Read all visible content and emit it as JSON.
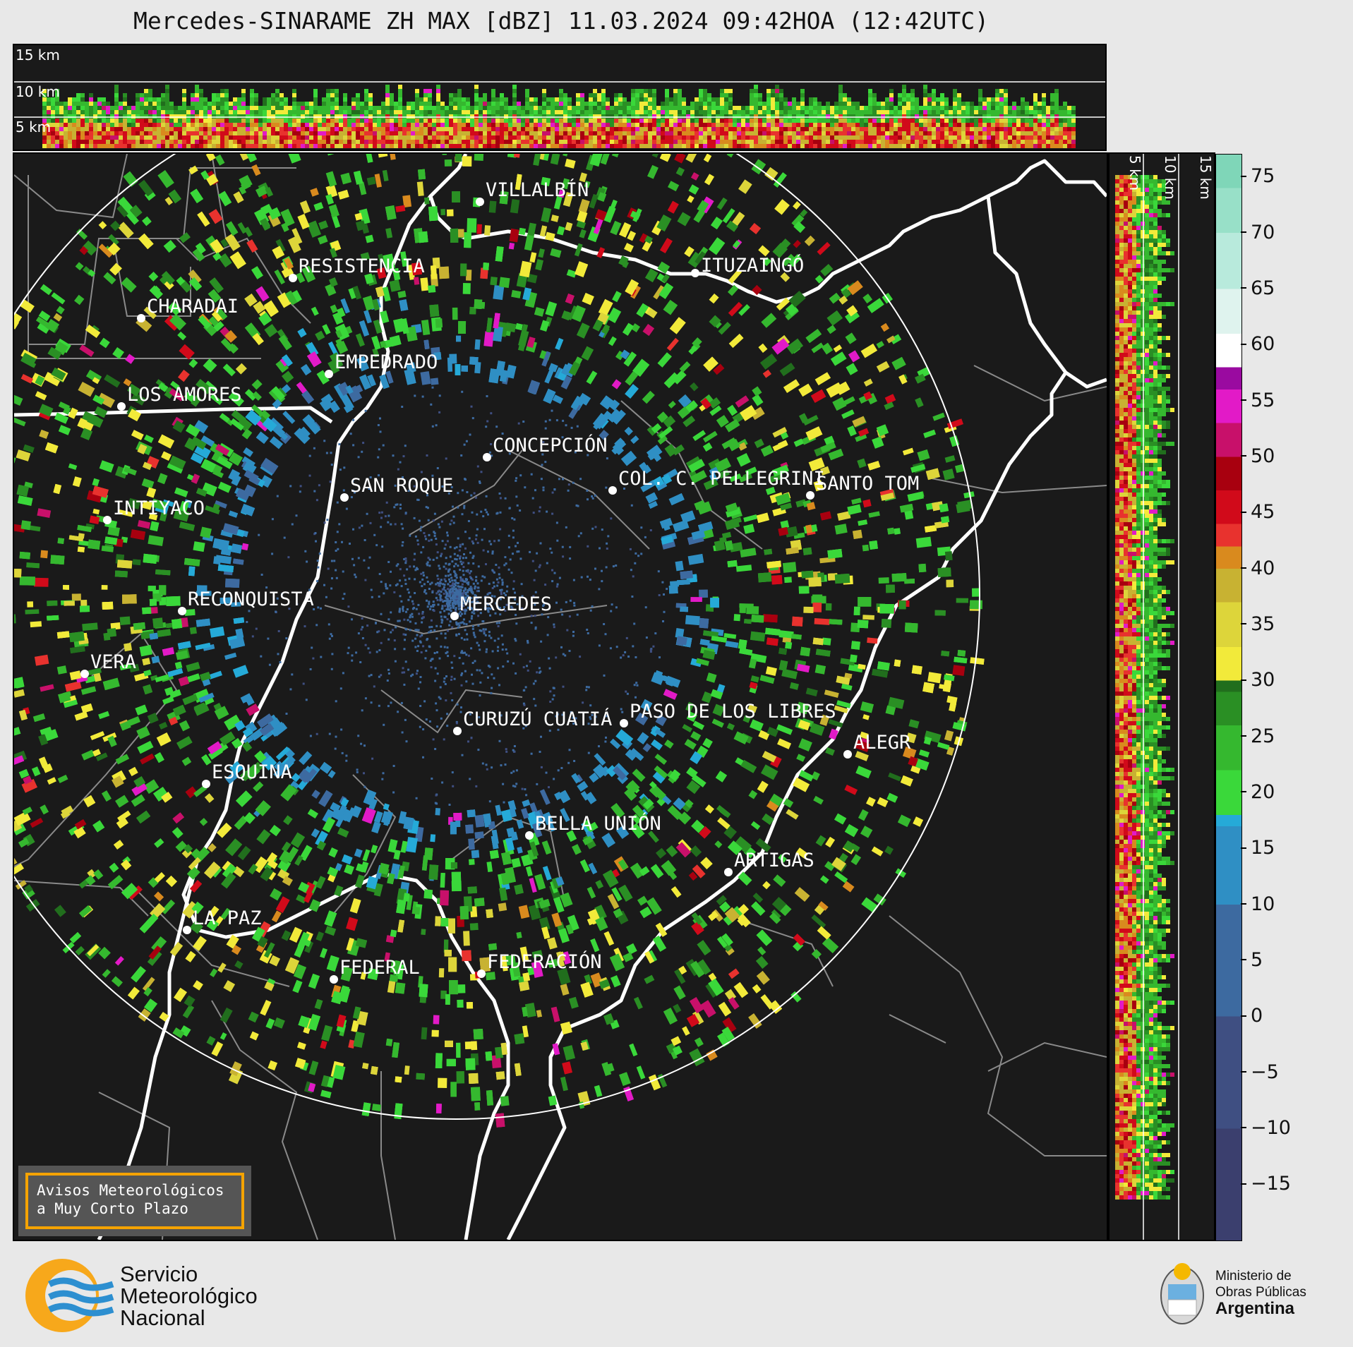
{
  "title": "Mercedes-SINARAME ZH MAX [dBZ] 11.03.2024 09:42HOA (12:42UTC)",
  "radar_site": "MERCEDES",
  "height_labels": [
    "15 km",
    "10 km",
    "5 km"
  ],
  "colorbar": {
    "ticks": [
      "75",
      "70",
      "65",
      "60",
      "55",
      "50",
      "45",
      "40",
      "35",
      "30",
      "25",
      "20",
      "15",
      "10",
      "5",
      "0",
      "−5",
      "−10",
      "−15"
    ],
    "range": [
      -20,
      77
    ],
    "palette": [
      {
        "from": -20,
        "color": "#3b3f6e"
      },
      {
        "from": -10,
        "color": "#3f4f82"
      },
      {
        "from": 0,
        "color": "#3d6aa0"
      },
      {
        "from": 10,
        "color": "#2f8fc4"
      },
      {
        "from": 17,
        "color": "#25aad8"
      },
      {
        "from": 18,
        "color": "#3ad83a"
      },
      {
        "from": 22,
        "color": "#35b82f"
      },
      {
        "from": 26,
        "color": "#2a8f24"
      },
      {
        "from": 29,
        "color": "#216e1d"
      },
      {
        "from": 30,
        "color": "#f2ea3a"
      },
      {
        "from": 33,
        "color": "#ddd53a"
      },
      {
        "from": 37,
        "color": "#c8b232"
      },
      {
        "from": 40,
        "color": "#d98a1e"
      },
      {
        "from": 42,
        "color": "#e8322e"
      },
      {
        "from": 44,
        "color": "#d10a1a"
      },
      {
        "from": 47,
        "color": "#a8000f"
      },
      {
        "from": 50,
        "color": "#c8106a"
      },
      {
        "from": 53,
        "color": "#e21ac7"
      },
      {
        "from": 56,
        "color": "#9a0aa0"
      },
      {
        "from": 58,
        "color": "#ffffff"
      },
      {
        "from": 61,
        "color": "#dff3ee"
      },
      {
        "from": 65,
        "color": "#b8eadc"
      },
      {
        "from": 70,
        "color": "#98e0c8"
      },
      {
        "from": 74,
        "color": "#7fd6b8"
      }
    ]
  },
  "cities": [
    {
      "name": "VILLALBÍN"
    },
    {
      "name": "RESISTENCIA"
    },
    {
      "name": "CHARADAI"
    },
    {
      "name": "ITUZAINGÓ"
    },
    {
      "name": "EMPEDRADO"
    },
    {
      "name": "LOS AMORES"
    },
    {
      "name": "CONCEPCIÓN"
    },
    {
      "name": "SAN ROQUE"
    },
    {
      "name": "COL. C. PELLEGRINI"
    },
    {
      "name": "SANTO TOM"
    },
    {
      "name": "INTIYACO"
    },
    {
      "name": "RECONQUISTA"
    },
    {
      "name": "MERCEDES"
    },
    {
      "name": "VERA"
    },
    {
      "name": "PASO DE LOS LIBRES"
    },
    {
      "name": "CURUZÚ CUATIÁ"
    },
    {
      "name": "ALEGR"
    },
    {
      "name": "ESQUINA"
    },
    {
      "name": "BELLA UNIÓN"
    },
    {
      "name": "ARTIGAS"
    },
    {
      "name": "LA PAZ"
    },
    {
      "name": "FEDERAL"
    },
    {
      "name": "FEDERACIÓN"
    }
  ],
  "warning_box": {
    "line1": "Avisos Meteorológicos",
    "line2": "a Muy Corto Plazo"
  },
  "logos": {
    "smn": {
      "line1": "Servicio",
      "line2": "Meteorológico",
      "line3": "Nacional"
    },
    "ministry": {
      "line1": "Ministerio de",
      "line2": "Obras Públicas",
      "line3": "Argentina"
    }
  }
}
